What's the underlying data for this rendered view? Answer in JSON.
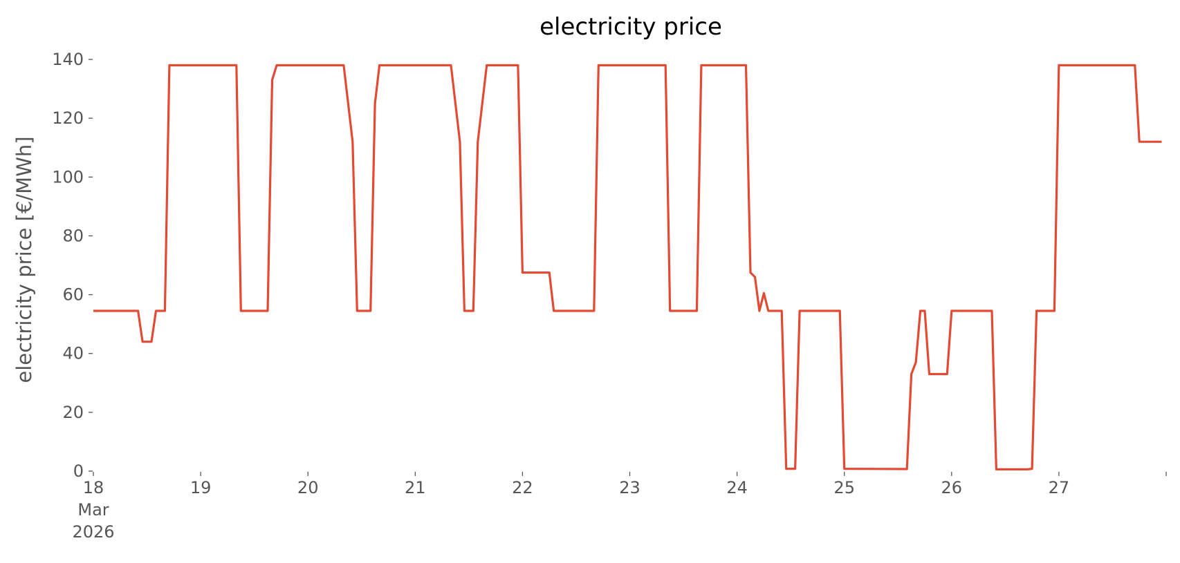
{
  "chart_data": {
    "type": "line",
    "title": "electricity price",
    "xlabel": "",
    "ylabel": "electricity price [€/MWh]",
    "xlim": [
      "2026-03-18 00:00",
      "2026-03-28 00:00"
    ],
    "ylim": [
      0,
      140
    ],
    "yticks": [
      0,
      20,
      40,
      60,
      80,
      100,
      120,
      140
    ],
    "xticks": [
      {
        "date": "2026-03-18",
        "label": [
          "18",
          "Mar",
          "2026"
        ]
      },
      {
        "date": "2026-03-19",
        "label": [
          "19"
        ]
      },
      {
        "date": "2026-03-20",
        "label": [
          "20"
        ]
      },
      {
        "date": "2026-03-21",
        "label": [
          "21"
        ]
      },
      {
        "date": "2026-03-22",
        "label": [
          "22"
        ]
      },
      {
        "date": "2026-03-23",
        "label": [
          "23"
        ]
      },
      {
        "date": "2026-03-24",
        "label": [
          "24"
        ]
      },
      {
        "date": "2026-03-25",
        "label": [
          "25"
        ]
      },
      {
        "date": "2026-03-26",
        "label": [
          "26"
        ]
      },
      {
        "date": "2026-03-27",
        "label": [
          "27"
        ]
      },
      {
        "date": "2026-03-28",
        "label": []
      }
    ],
    "grid": false,
    "legend": "none",
    "series": [
      {
        "color": "#E24A33",
        "points": [
          [
            "2026-03-18 00:00",
            54.5
          ],
          [
            "2026-03-18 10:00",
            54.5
          ],
          [
            "2026-03-18 11:00",
            44.0
          ],
          [
            "2026-03-18 13:00",
            44.0
          ],
          [
            "2026-03-18 14:00",
            54.5
          ],
          [
            "2026-03-18 16:00",
            54.5
          ],
          [
            "2026-03-18 17:00",
            138.0
          ],
          [
            "2026-03-19 08:00",
            138.0
          ],
          [
            "2026-03-19 09:00",
            54.5
          ],
          [
            "2026-03-19 15:00",
            54.5
          ],
          [
            "2026-03-19 16:00",
            133.0
          ],
          [
            "2026-03-19 17:00",
            138.0
          ],
          [
            "2026-03-20 08:00",
            138.0
          ],
          [
            "2026-03-20 10:00",
            112.0
          ],
          [
            "2026-03-20 11:00",
            54.5
          ],
          [
            "2026-03-20 14:00",
            54.5
          ],
          [
            "2026-03-20 15:00",
            125.0
          ],
          [
            "2026-03-20 16:00",
            138.0
          ],
          [
            "2026-03-21 08:00",
            138.0
          ],
          [
            "2026-03-21 10:00",
            112.0
          ],
          [
            "2026-03-21 11:00",
            54.5
          ],
          [
            "2026-03-21 13:00",
            54.5
          ],
          [
            "2026-03-21 14:00",
            112.0
          ],
          [
            "2026-03-21 16:00",
            138.0
          ],
          [
            "2026-03-21 23:00",
            138.0
          ],
          [
            "2026-03-22 00:00",
            67.5
          ],
          [
            "2026-03-22 06:00",
            67.5
          ],
          [
            "2026-03-22 07:00",
            54.5
          ],
          [
            "2026-03-22 16:00",
            54.5
          ],
          [
            "2026-03-22 17:00",
            138.0
          ],
          [
            "2026-03-23 08:00",
            138.0
          ],
          [
            "2026-03-23 09:00",
            54.5
          ],
          [
            "2026-03-23 15:00",
            54.5
          ],
          [
            "2026-03-23 16:00",
            138.0
          ],
          [
            "2026-03-24 02:00",
            138.0
          ],
          [
            "2026-03-24 03:00",
            67.5
          ],
          [
            "2026-03-24 04:00",
            66.0
          ],
          [
            "2026-03-24 05:00",
            54.5
          ],
          [
            "2026-03-24 06:00",
            60.5
          ],
          [
            "2026-03-24 07:00",
            54.5
          ],
          [
            "2026-03-24 10:00",
            54.5
          ],
          [
            "2026-03-24 11:00",
            0.8
          ],
          [
            "2026-03-24 13:00",
            0.8
          ],
          [
            "2026-03-24 14:00",
            54.5
          ],
          [
            "2026-03-24 23:00",
            54.5
          ],
          [
            "2026-03-25 00:00",
            0.8
          ],
          [
            "2026-03-25 14:00",
            0.7
          ],
          [
            "2026-03-25 15:00",
            33.0
          ],
          [
            "2026-03-25 16:00",
            37.0
          ],
          [
            "2026-03-25 17:00",
            54.5
          ],
          [
            "2026-03-25 18:00",
            54.5
          ],
          [
            "2026-03-25 19:00",
            33.0
          ],
          [
            "2026-03-25 23:00",
            33.0
          ],
          [
            "2026-03-26 00:00",
            54.5
          ],
          [
            "2026-03-26 09:00",
            54.5
          ],
          [
            "2026-03-26 10:00",
            0.6
          ],
          [
            "2026-03-26 17:00",
            0.6
          ],
          [
            "2026-03-26 18:00",
            0.8
          ],
          [
            "2026-03-26 19:00",
            54.5
          ],
          [
            "2026-03-26 23:00",
            54.5
          ],
          [
            "2026-03-27 00:00",
            138.0
          ],
          [
            "2026-03-27 17:00",
            138.0
          ],
          [
            "2026-03-27 18:00",
            112.0
          ],
          [
            "2026-03-27 23:00",
            112.0
          ]
        ]
      }
    ]
  }
}
